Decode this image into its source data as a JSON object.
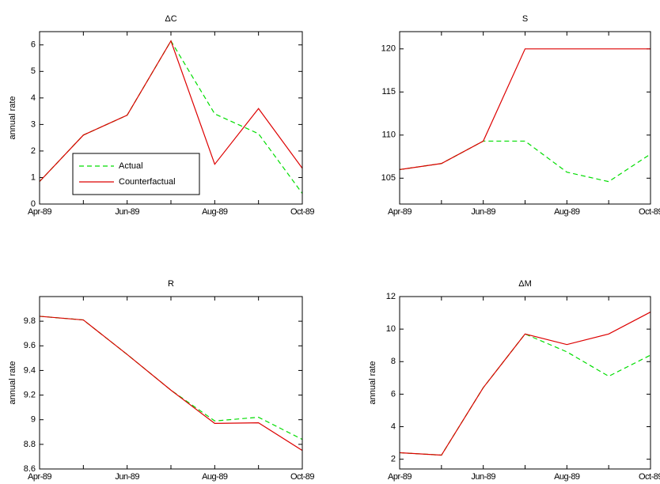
{
  "chart_data": [
    {
      "type": "line",
      "title": "ΔC",
      "ylabel": "annual rate",
      "categories": [
        "Apr-89",
        null,
        "Jun-89",
        null,
        "Aug-89",
        null,
        "Oct-89"
      ],
      "ylim": [
        0,
        6.5
      ],
      "yticks": [
        0,
        1,
        2,
        3,
        4,
        5,
        6
      ],
      "legend": "lower left",
      "series": [
        {
          "name": "Actual",
          "color": "#00dd00",
          "style": "dashed",
          "values": [
            0.85,
            2.6,
            3.35,
            6.15,
            3.4,
            2.65,
            0.4
          ]
        },
        {
          "name": "Counterfactual",
          "color": "#dd0000",
          "style": "solid",
          "values": [
            0.85,
            2.6,
            3.35,
            6.15,
            1.5,
            3.6,
            1.35
          ]
        }
      ]
    },
    {
      "type": "line",
      "title": "S",
      "categories": [
        "Apr-89",
        null,
        "Jun-89",
        null,
        "Aug-89",
        null,
        "Oct-89"
      ],
      "ylim": [
        102,
        122
      ],
      "yticks": [
        105,
        110,
        115,
        120
      ],
      "series": [
        {
          "color": "#00dd00",
          "style": "dashed",
          "values": [
            106,
            106.7,
            109.3,
            109.3,
            105.7,
            104.6,
            107.8
          ]
        },
        {
          "color": "#dd0000",
          "style": "solid",
          "values": [
            106,
            106.7,
            109.3,
            120,
            120,
            120,
            120
          ]
        }
      ]
    },
    {
      "type": "line",
      "title": "R",
      "ylabel": "annual rate",
      "categories": [
        "Apr-89",
        null,
        "Jun-89",
        null,
        "Aug-89",
        null,
        "Oct-89"
      ],
      "ylim": [
        8.6,
        10
      ],
      "yticks": [
        8.6,
        8.8,
        {
          "value": 9,
          "label": "9"
        },
        9.2,
        9.4,
        9.6,
        9.8
      ],
      "series": [
        {
          "color": "#00dd00",
          "style": "dashed",
          "values": [
            9.84,
            9.81,
            9.53,
            9.24,
            8.99,
            9.02,
            8.84
          ]
        },
        {
          "color": "#dd0000",
          "style": "solid",
          "values": [
            9.84,
            9.81,
            9.53,
            9.24,
            8.97,
            8.975,
            8.75
          ]
        }
      ]
    },
    {
      "type": "line",
      "title": "ΔM",
      "ylabel": "annual rate",
      "categories": [
        "Apr-89",
        null,
        "Jun-89",
        null,
        "Aug-89",
        null,
        "Oct-89"
      ],
      "ylim": [
        1.4,
        12
      ],
      "yticks": [
        2,
        4,
        6,
        8,
        10,
        12
      ],
      "series": [
        {
          "color": "#00dd00",
          "style": "dashed",
          "values": [
            2.4,
            2.25,
            6.4,
            9.7,
            8.6,
            7.1,
            8.4
          ]
        },
        {
          "color": "#dd0000",
          "style": "solid",
          "values": [
            2.4,
            2.25,
            6.4,
            9.7,
            9.05,
            9.7,
            11.05
          ]
        }
      ]
    }
  ]
}
